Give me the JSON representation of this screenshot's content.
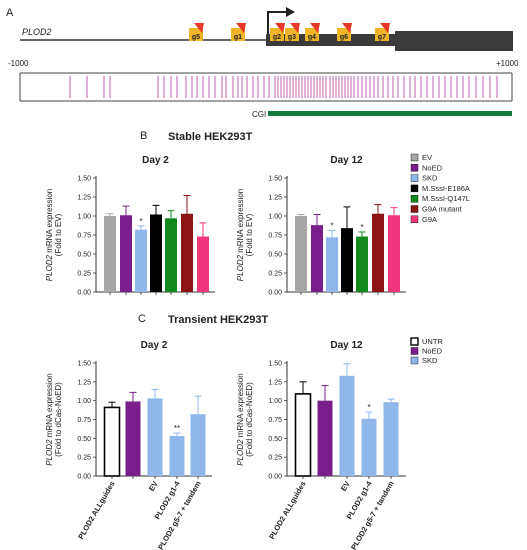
{
  "panelA": {
    "letter": "A",
    "gene": "PLOD2",
    "left_coord": "-1000",
    "right_coord": "+1000",
    "cgi_label": "CGI",
    "guides": [
      "g5",
      "g1",
      "g2",
      "g3",
      "g4",
      "g6",
      "g7"
    ],
    "colors": {
      "guide_orange": "#f0b429",
      "guide_red": "#e8382a",
      "cpg": "#c060b0",
      "cgi": "#0f7a3c",
      "exon": "#3a3a3a"
    }
  },
  "panelB": {
    "letter": "B",
    "title": "Stable HEK293T",
    "legend": [
      {
        "label": "EV",
        "color": "#a6a6a6"
      },
      {
        "label": "NoED",
        "color": "#7a1e8c"
      },
      {
        "label": "SKD",
        "color": "#8fb7ea"
      },
      {
        "label": "M.SssI-E186A",
        "color": "#000000"
      },
      {
        "label": "M.SssI-Q147L",
        "color": "#13881d"
      },
      {
        "label": "G9A mutant",
        "color": "#8b1414"
      },
      {
        "label": "G9A",
        "color": "#f0367a"
      }
    ]
  },
  "panelC": {
    "letter": "C",
    "title": "Transient HEK293T",
    "legend": [
      {
        "label": "UNTR",
        "color": "#ffffff"
      },
      {
        "label": "NoED",
        "color": "#7a1e8c"
      },
      {
        "label": "SKD",
        "color": "#8fb7ea"
      }
    ]
  },
  "chart_data": [
    {
      "type": "bar",
      "title": "Day 2",
      "ylabel_gene": "PLOD2",
      "ylabel_rest": " mRNA expression",
      "ylabel2": "(Fold to EV)",
      "yticks": [
        "0.00",
        "0.25",
        "0.50",
        "0.75",
        "1.00",
        "1.25",
        "1.50"
      ],
      "ylim": [
        0,
        1.5
      ],
      "categories": [
        "EV",
        "NoED",
        "SKD",
        "M.SssI-E186A",
        "M.SssI-Q147L",
        "G9A mutant",
        "G9A"
      ],
      "values": [
        1.0,
        1.01,
        0.82,
        1.02,
        0.97,
        1.03,
        0.73
      ],
      "errors": [
        0.03,
        0.12,
        0.05,
        0.12,
        0.1,
        0.24,
        0.18
      ],
      "colors": [
        "#a6a6a6",
        "#7a1e8c",
        "#8fb7ea",
        "#000000",
        "#13881d",
        "#8b1414",
        "#f0367a"
      ],
      "significance": [
        "",
        "",
        "*",
        "",
        "",
        "",
        ""
      ]
    },
    {
      "type": "bar",
      "title": "Day 12",
      "ylabel_gene": "PLOD2",
      "ylabel_rest": " mRNA expression",
      "ylabel2": "(Fold to EV)",
      "yticks": [
        "0.00",
        "0.25",
        "0.50",
        "0.75",
        "1.00",
        "1.25",
        "1.50"
      ],
      "ylim": [
        0,
        1.5
      ],
      "categories": [
        "EV",
        "NoED",
        "SKD",
        "M.SssI-E186A",
        "M.SssI-Q147L",
        "G9A mutant",
        "G9A"
      ],
      "values": [
        1.0,
        0.88,
        0.72,
        0.84,
        0.73,
        1.03,
        1.01
      ],
      "errors": [
        0.02,
        0.14,
        0.09,
        0.28,
        0.06,
        0.12,
        0.1
      ],
      "colors": [
        "#a6a6a6",
        "#7a1e8c",
        "#8fb7ea",
        "#000000",
        "#13881d",
        "#8b1414",
        "#f0367a"
      ],
      "significance": [
        "",
        "",
        "*",
        "",
        "*",
        "",
        ""
      ]
    },
    {
      "type": "bar",
      "title": "Day 2",
      "ylabel_gene": "PLOD2",
      "ylabel_rest": " mRNA expression",
      "ylabel2": "(Fold to dCas-NoED)",
      "yticks": [
        "0.00",
        "0.25",
        "0.50",
        "0.75",
        "1.00",
        "1.25",
        "1.50"
      ],
      "ylim": [
        0,
        1.5
      ],
      "categories": [
        "PLOD2 ALLguides",
        "NoED",
        "EV",
        "PLOD2 g1-4",
        "PLOD2 g5-7 + tandem"
      ],
      "values": [
        0.91,
        0.99,
        1.03,
        0.53,
        0.82
      ],
      "errors": [
        0.07,
        0.12,
        0.12,
        0.04,
        0.24
      ],
      "colors": [
        "#ffffff",
        "#7a1e8c",
        "#8fb7ea",
        "#8fb7ea",
        "#8fb7ea"
      ],
      "significance": [
        "",
        "",
        "",
        "**",
        ""
      ],
      "xlabels_shown": [
        "PLOD2 ALLguides",
        "EV",
        "PLOD2 g1-4",
        "PLOD2 g5-7 + tandem"
      ]
    },
    {
      "type": "bar",
      "title": "Day 12",
      "ylabel_gene": "PLOD2",
      "ylabel_rest": " mRNA expression",
      "ylabel2": "(Fold to dCas-NoED)",
      "yticks": [
        "0.00",
        "0.25",
        "0.50",
        "0.75",
        "1.00",
        "1.25",
        "1.50"
      ],
      "ylim": [
        0,
        1.5
      ],
      "categories": [
        "PLOD2 ALLguides",
        "NoED",
        "EV",
        "PLOD2 g1-4",
        "PLOD2 g5-7 + tandem"
      ],
      "values": [
        1.09,
        1.0,
        1.33,
        0.76,
        0.98
      ],
      "errors": [
        0.16,
        0.2,
        0.16,
        0.09,
        0.04
      ],
      "colors": [
        "#ffffff",
        "#7a1e8c",
        "#8fb7ea",
        "#8fb7ea",
        "#8fb7ea"
      ],
      "significance": [
        "",
        "",
        "",
        "*",
        ""
      ],
      "xlabels_shown": [
        "PLOD2 ALLguides",
        "EV",
        "PLOD2 g1-4",
        "PLOD2 g5-7 + tandem"
      ]
    }
  ]
}
